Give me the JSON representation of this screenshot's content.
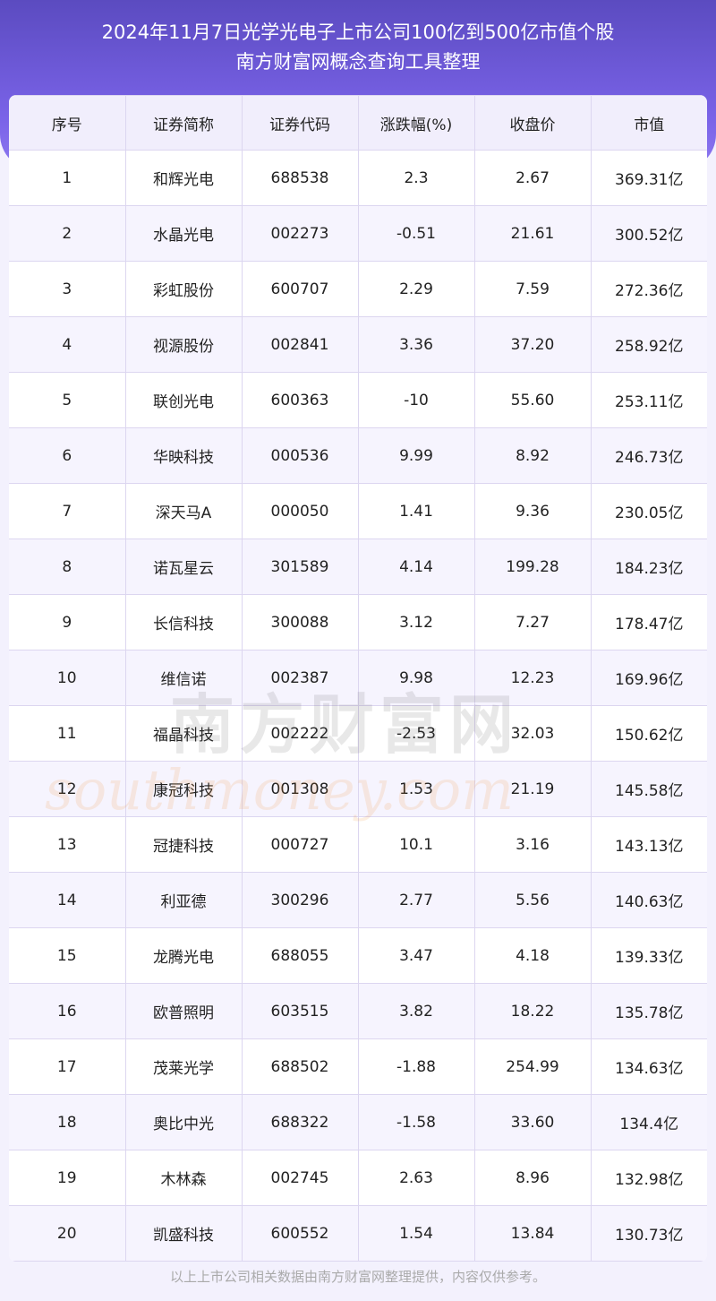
{
  "header": {
    "title_line1": "2024年11月7日光学光电子上市公司100亿到500亿市值个股",
    "title_line2": "南方财富网概念查询工具整理"
  },
  "table": {
    "columns": [
      "序号",
      "证券简称",
      "证券代码",
      "涨跌幅(%)",
      "收盘价",
      "市值"
    ],
    "rows": [
      [
        "1",
        "和辉光电",
        "688538",
        "2.3",
        "2.67",
        "369.31亿"
      ],
      [
        "2",
        "水晶光电",
        "002273",
        "-0.51",
        "21.61",
        "300.52亿"
      ],
      [
        "3",
        "彩虹股份",
        "600707",
        "2.29",
        "7.59",
        "272.36亿"
      ],
      [
        "4",
        "视源股份",
        "002841",
        "3.36",
        "37.20",
        "258.92亿"
      ],
      [
        "5",
        "联创光电",
        "600363",
        "-10",
        "55.60",
        "253.11亿"
      ],
      [
        "6",
        "华映科技",
        "000536",
        "9.99",
        "8.92",
        "246.73亿"
      ],
      [
        "7",
        "深天马A",
        "000050",
        "1.41",
        "9.36",
        "230.05亿"
      ],
      [
        "8",
        "诺瓦星云",
        "301589",
        "4.14",
        "199.28",
        "184.23亿"
      ],
      [
        "9",
        "长信科技",
        "300088",
        "3.12",
        "7.27",
        "178.47亿"
      ],
      [
        "10",
        "维信诺",
        "002387",
        "9.98",
        "12.23",
        "169.96亿"
      ],
      [
        "11",
        "福晶科技",
        "002222",
        "-2.53",
        "32.03",
        "150.62亿"
      ],
      [
        "12",
        "康冠科技",
        "001308",
        "1.53",
        "21.19",
        "145.58亿"
      ],
      [
        "13",
        "冠捷科技",
        "000727",
        "10.1",
        "3.16",
        "143.13亿"
      ],
      [
        "14",
        "利亚德",
        "300296",
        "2.77",
        "5.56",
        "140.63亿"
      ],
      [
        "15",
        "龙腾光电",
        "688055",
        "3.47",
        "4.18",
        "139.33亿"
      ],
      [
        "16",
        "欧普照明",
        "603515",
        "3.82",
        "18.22",
        "135.78亿"
      ],
      [
        "17",
        "茂莱光学",
        "688502",
        "-1.88",
        "254.99",
        "134.63亿"
      ],
      [
        "18",
        "奥比中光",
        "688322",
        "-1.58",
        "33.60",
        "134.4亿"
      ],
      [
        "19",
        "木林森",
        "002745",
        "2.63",
        "8.96",
        "132.98亿"
      ],
      [
        "20",
        "凯盛科技",
        "600552",
        "1.54",
        "13.84",
        "130.73亿"
      ]
    ]
  },
  "watermark": {
    "line1": "南方财富网",
    "line2": "southmoney.com"
  },
  "footer": {
    "note": "以上上市公司相关数据由南方财富网整理提供，内容仅供参考。"
  }
}
